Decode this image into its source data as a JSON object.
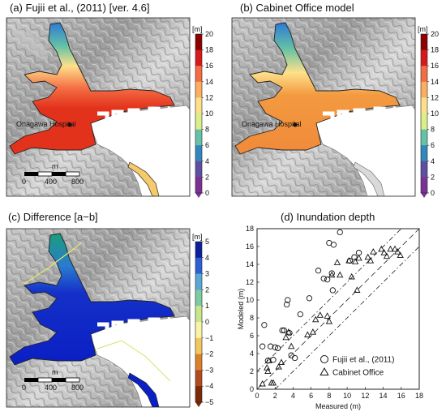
{
  "panels": {
    "a": {
      "title": "(a) Fujii et al., (2011) [ver. 4.6]",
      "place_label": "Onagawa Hospital"
    },
    "b": {
      "title": "(b) Cabinet Office model",
      "place_label": "Onagawa Hospital"
    },
    "c": {
      "title": "(c) Difference [a−b]"
    },
    "d": {
      "title": "(d) Inundation depth"
    }
  },
  "scalebar": {
    "unit": "m",
    "labels": [
      "0",
      "400",
      "800"
    ]
  },
  "colorbar_depth": {
    "unit": "[m]",
    "ticks": [
      "20",
      "18",
      "16",
      "14",
      "12",
      "10",
      "8",
      "6",
      "4",
      "2",
      "0"
    ],
    "colors": [
      "#8b0000",
      "#d7191c",
      "#f46d43",
      "#fdae61",
      "#fee08b",
      "#d9ef8b",
      "#66c2a5",
      "#3288bd",
      "#5e4fa2",
      "#7b3294"
    ]
  },
  "colorbar_diff": {
    "unit": "[m]",
    "ticks": [
      "5",
      "4",
      "3",
      "2",
      "1",
      "0",
      "−1",
      "−2",
      "−3",
      "−4",
      "−5"
    ],
    "colors": [
      "#0c1f9c",
      "#2d5fd6",
      "#5aa6d4",
      "#7ccba2",
      "#c9e68b",
      "#fbf3a6",
      "#f2c85e",
      "#d9822b",
      "#b34a1d",
      "#7a2a08"
    ]
  },
  "chart_data": {
    "type": "scatter",
    "title": "(d) Inundation depth",
    "xlabel": "Measured (m)",
    "ylabel": "Modeled (m)",
    "xlim": [
      0,
      18
    ],
    "ylim": [
      0,
      18
    ],
    "xticks": [
      "0",
      "2",
      "4",
      "6",
      "8",
      "10",
      "12",
      "14",
      "16",
      "18"
    ],
    "yticks": [
      "0",
      "2",
      "4",
      "6",
      "8",
      "10",
      "12",
      "14",
      "16",
      "18"
    ],
    "series": [
      {
        "name": "Fujii et al., (2011)",
        "marker": "circle",
        "points": [
          [
            0.6,
            4.8
          ],
          [
            0.8,
            7.2
          ],
          [
            1.2,
            3.2
          ],
          [
            1.5,
            4.8
          ],
          [
            1.8,
            3.3
          ],
          [
            2.0,
            4.7
          ],
          [
            2.3,
            4.6
          ],
          [
            2.8,
            6.6
          ],
          [
            3.0,
            6.6
          ],
          [
            3.3,
            9.5
          ],
          [
            3.4,
            10.0
          ],
          [
            3.6,
            6.3
          ],
          [
            3.8,
            3.8
          ],
          [
            4.2,
            3.5
          ],
          [
            4.8,
            8.4
          ],
          [
            5.8,
            10.2
          ],
          [
            6.8,
            13.3
          ],
          [
            7.4,
            12.4
          ],
          [
            7.8,
            12.3
          ],
          [
            8.0,
            16.4
          ],
          [
            8.3,
            13.0
          ],
          [
            8.4,
            11.1
          ],
          [
            8.5,
            16.2
          ],
          [
            9.2,
            17.6
          ],
          [
            10.3,
            14.4
          ],
          [
            10.8,
            14.8
          ],
          [
            11.3,
            15.3
          ]
        ]
      },
      {
        "name": "Cabinet Office",
        "marker": "triangle",
        "points": [
          [
            0.6,
            0.6
          ],
          [
            1.1,
            2.4
          ],
          [
            1.2,
            2.0
          ],
          [
            1.6,
            0.7
          ],
          [
            1.8,
            0.7
          ],
          [
            1.3,
            3.2
          ],
          [
            2.4,
            2.5
          ],
          [
            2.7,
            3.0
          ],
          [
            3.2,
            5.8
          ],
          [
            3.5,
            6.4
          ],
          [
            3.8,
            4.8
          ],
          [
            5.6,
            6.1
          ],
          [
            6.2,
            6.4
          ],
          [
            6.5,
            7.8
          ],
          [
            7.0,
            8.3
          ],
          [
            7.8,
            8.2
          ],
          [
            8.0,
            7.6
          ],
          [
            8.3,
            12.8
          ],
          [
            8.9,
            14.2
          ],
          [
            9.2,
            12.8
          ],
          [
            10.2,
            14.4
          ],
          [
            10.5,
            12.6
          ],
          [
            10.9,
            14.3
          ],
          [
            11.1,
            11.1
          ],
          [
            11.3,
            14.7
          ],
          [
            12.3,
            14.8
          ],
          [
            12.6,
            14.4
          ],
          [
            12.9,
            15.4
          ],
          [
            13.8,
            15.7
          ],
          [
            14.1,
            15.3
          ],
          [
            14.4,
            14.9
          ],
          [
            14.8,
            15.7
          ],
          [
            15.3,
            15.7
          ],
          [
            15.6,
            15.4
          ],
          [
            15.9,
            15.0
          ]
        ]
      }
    ],
    "reference_lines": [
      "y = x",
      "y = x + 2",
      "y = x − 2"
    ],
    "legend_position": "bottom-right"
  }
}
